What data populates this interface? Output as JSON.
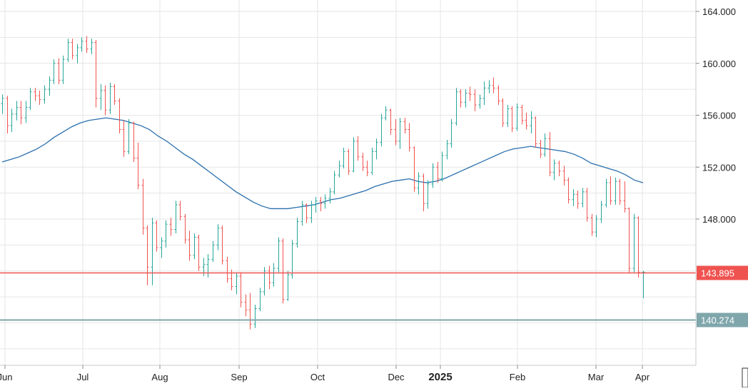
{
  "chart_data": {
    "type": "ohlc",
    "x_tick_labels": [
      "Jun",
      "Jul",
      "Aug",
      "Sep",
      "Oct",
      "Dec",
      "2025",
      "Feb",
      "Mar",
      "Apr"
    ],
    "y_tick_labels": [
      "164.000",
      "160.000",
      "156.000",
      "152.000",
      "148.000"
    ],
    "ylim": [
      137.5,
      165.2
    ],
    "grid": true,
    "price_lines": [
      {
        "value": 143.895,
        "label": "143.895",
        "color": "#ef5350"
      },
      {
        "value": 140.274,
        "label": "140.274",
        "color": "#7fa6ab"
      }
    ],
    "colors": {
      "up": "#26a69a",
      "down": "#ef5350",
      "moving_average": "#2a6fae",
      "grid": "#e6e6e6",
      "axis_text": "#222222"
    },
    "moving_average": [
      [
        0,
        152.4
      ],
      [
        10,
        152.6
      ],
      [
        20,
        152.8
      ],
      [
        30,
        153.1
      ],
      [
        40,
        153.4
      ],
      [
        50,
        153.8
      ],
      [
        60,
        154.3
      ],
      [
        70,
        154.7
      ],
      [
        80,
        155.1
      ],
      [
        90,
        155.4
      ],
      [
        100,
        155.6
      ],
      [
        110,
        155.7
      ],
      [
        120,
        155.8
      ],
      [
        130,
        155.7
      ],
      [
        140,
        155.6
      ],
      [
        150,
        155.4
      ],
      [
        160,
        155.2
      ],
      [
        170,
        154.9
      ],
      [
        180,
        154.4
      ],
      [
        190,
        154.0
      ],
      [
        200,
        153.5
      ],
      [
        210,
        153.0
      ],
      [
        220,
        152.6
      ],
      [
        230,
        152.1
      ],
      [
        240,
        151.6
      ],
      [
        250,
        151.1
      ],
      [
        260,
        150.6
      ],
      [
        270,
        150.1
      ],
      [
        280,
        149.7
      ],
      [
        290,
        149.3
      ],
      [
        300,
        149.0
      ],
      [
        310,
        148.8
      ],
      [
        320,
        148.8
      ],
      [
        330,
        148.8
      ],
      [
        340,
        148.9
      ],
      [
        350,
        149.0
      ],
      [
        360,
        149.1
      ],
      [
        370,
        149.3
      ],
      [
        380,
        149.5
      ],
      [
        390,
        149.6
      ],
      [
        400,
        149.8
      ],
      [
        410,
        150.0
      ],
      [
        420,
        150.2
      ],
      [
        430,
        150.5
      ],
      [
        440,
        150.7
      ],
      [
        450,
        150.9
      ],
      [
        460,
        151.0
      ],
      [
        470,
        151.1
      ],
      [
        480,
        150.9
      ],
      [
        490,
        150.8
      ],
      [
        500,
        150.9
      ],
      [
        510,
        151.1
      ],
      [
        520,
        151.4
      ],
      [
        530,
        151.7
      ],
      [
        540,
        152.0
      ],
      [
        550,
        152.3
      ],
      [
        560,
        152.6
      ],
      [
        570,
        152.9
      ],
      [
        580,
        153.2
      ],
      [
        590,
        153.4
      ],
      [
        600,
        153.5
      ],
      [
        610,
        153.6
      ],
      [
        620,
        153.5
      ],
      [
        630,
        153.4
      ],
      [
        640,
        153.3
      ],
      [
        650,
        153.2
      ],
      [
        660,
        153.0
      ],
      [
        670,
        152.7
      ],
      [
        680,
        152.3
      ],
      [
        690,
        152.1
      ],
      [
        700,
        151.9
      ],
      [
        710,
        151.7
      ],
      [
        720,
        151.4
      ],
      [
        730,
        151.0
      ],
      [
        740,
        150.8
      ]
    ],
    "bars": [
      [
        0,
        156.9,
        157.6,
        156.1,
        157.3
      ],
      [
        4,
        157.3,
        157.5,
        154.6,
        155.2
      ],
      [
        8,
        155.2,
        156.5,
        154.7,
        156.1
      ],
      [
        12,
        156.1,
        157.1,
        155.6,
        156.6
      ],
      [
        16,
        156.6,
        157.1,
        155.3,
        155.8
      ],
      [
        20,
        155.8,
        157.1,
        155.4,
        156.6
      ],
      [
        24,
        156.6,
        158.1,
        156.4,
        157.8
      ],
      [
        28,
        157.8,
        158.1,
        157.1,
        157.5
      ],
      [
        32,
        157.5,
        157.9,
        156.8,
        157.2
      ],
      [
        36,
        157.2,
        158.3,
        156.9,
        158.0
      ],
      [
        40,
        158.0,
        159.0,
        157.5,
        158.7
      ],
      [
        44,
        158.7,
        160.3,
        158.4,
        160.0
      ],
      [
        48,
        160.0,
        160.4,
        158.4,
        158.7
      ],
      [
        52,
        158.7,
        160.6,
        158.4,
        160.3
      ],
      [
        56,
        160.3,
        161.9,
        160.1,
        161.6
      ],
      [
        60,
        161.6,
        161.9,
        160.3,
        160.6
      ],
      [
        64,
        160.6,
        161.5,
        160.0,
        161.2
      ],
      [
        68,
        161.2,
        162.0,
        160.9,
        161.7
      ],
      [
        72,
        161.7,
        162.1,
        160.8,
        161.1
      ],
      [
        76,
        161.1,
        161.9,
        160.7,
        161.6
      ],
      [
        80,
        161.6,
        161.8,
        156.6,
        157.3
      ],
      [
        84,
        157.3,
        158.4,
        156.4,
        157.9
      ],
      [
        88,
        157.9,
        158.3,
        156.0,
        156.4
      ],
      [
        92,
        156.4,
        158.5,
        156.1,
        158.2
      ],
      [
        96,
        158.2,
        158.4,
        156.8,
        157.1
      ],
      [
        100,
        157.1,
        157.3,
        154.6,
        154.9
      ],
      [
        104,
        154.9,
        155.6,
        152.8,
        153.2
      ],
      [
        108,
        153.2,
        155.7,
        153.0,
        155.4
      ],
      [
        112,
        155.4,
        155.5,
        152.4,
        152.7
      ],
      [
        116,
        152.7,
        153.9,
        150.3,
        150.6
      ],
      [
        120,
        150.6,
        151.1,
        146.8,
        147.3
      ],
      [
        124,
        147.3,
        147.5,
        142.9,
        144.3
      ],
      [
        128,
        144.3,
        148.1,
        142.9,
        147.7
      ],
      [
        132,
        147.7,
        147.9,
        145.5,
        145.8
      ],
      [
        136,
        145.8,
        146.6,
        145.0,
        146.3
      ],
      [
        140,
        146.3,
        147.9,
        145.8,
        147.6
      ],
      [
        144,
        147.6,
        148.1,
        146.7,
        147.2
      ],
      [
        148,
        147.2,
        149.4,
        146.9,
        149.1
      ],
      [
        152,
        149.1,
        149.4,
        147.9,
        148.2
      ],
      [
        156,
        148.2,
        148.4,
        146.1,
        146.4
      ],
      [
        160,
        146.4,
        147.1,
        144.8,
        145.2
      ],
      [
        164,
        145.2,
        146.9,
        144.9,
        146.6
      ],
      [
        168,
        146.6,
        146.8,
        144.0,
        144.3
      ],
      [
        172,
        144.3,
        145.0,
        143.6,
        144.5
      ],
      [
        176,
        144.5,
        145.3,
        143.5,
        144.9
      ],
      [
        180,
        144.9,
        146.3,
        144.7,
        146.0
      ],
      [
        184,
        146.0,
        147.6,
        145.6,
        147.3
      ],
      [
        188,
        147.3,
        147.5,
        144.5,
        144.8
      ],
      [
        192,
        144.8,
        145.1,
        143.1,
        143.4
      ],
      [
        196,
        143.4,
        144.1,
        142.5,
        142.8
      ],
      [
        200,
        142.8,
        143.9,
        142.2,
        143.6
      ],
      [
        204,
        143.6,
        143.9,
        141.2,
        141.6
      ],
      [
        208,
        141.6,
        142.2,
        140.5,
        141.0
      ],
      [
        212,
        141.0,
        142.3,
        139.5,
        139.9
      ],
      [
        216,
        139.9,
        141.4,
        139.6,
        141.1
      ],
      [
        220,
        141.1,
        142.7,
        140.9,
        142.4
      ],
      [
        224,
        142.4,
        144.3,
        142.1,
        144.0
      ],
      [
        228,
        144.0,
        144.4,
        142.6,
        143.1
      ],
      [
        232,
        143.1,
        144.6,
        142.8,
        144.2
      ],
      [
        236,
        144.2,
        146.6,
        143.9,
        146.3
      ],
      [
        240,
        146.3,
        146.5,
        141.5,
        141.8
      ],
      [
        244,
        141.8,
        144.0,
        141.7,
        143.7
      ],
      [
        248,
        143.7,
        146.4,
        143.4,
        146.1
      ],
      [
        252,
        146.1,
        148.1,
        145.8,
        147.8
      ],
      [
        256,
        147.8,
        149.4,
        147.5,
        149.1
      ],
      [
        260,
        149.1,
        149.2,
        147.7,
        148.1
      ],
      [
        264,
        148.1,
        149.4,
        147.7,
        149.1
      ],
      [
        268,
        149.1,
        149.7,
        148.5,
        149.4
      ],
      [
        272,
        149.4,
        149.7,
        148.6,
        149.2
      ],
      [
        276,
        149.2,
        149.9,
        148.8,
        149.6
      ],
      [
        280,
        149.6,
        150.4,
        149.2,
        150.1
      ],
      [
        284,
        150.1,
        151.7,
        149.9,
        151.4
      ],
      [
        288,
        151.4,
        152.5,
        151.2,
        152.1
      ],
      [
        292,
        152.1,
        153.5,
        151.9,
        153.2
      ],
      [
        296,
        153.2,
        153.4,
        151.4,
        151.7
      ],
      [
        300,
        151.7,
        154.3,
        151.6,
        154.0
      ],
      [
        304,
        154.0,
        154.4,
        152.5,
        152.8
      ],
      [
        308,
        152.8,
        153.1,
        151.7,
        152.0
      ],
      [
        312,
        152.0,
        152.5,
        151.3,
        151.6
      ],
      [
        316,
        151.6,
        153.5,
        151.4,
        153.2
      ],
      [
        320,
        153.2,
        154.2,
        152.6,
        153.9
      ],
      [
        324,
        153.9,
        156.1,
        153.6,
        155.8
      ],
      [
        328,
        155.8,
        156.7,
        155.6,
        156.4
      ],
      [
        332,
        156.4,
        156.5,
        154.5,
        154.9
      ],
      [
        336,
        154.9,
        155.7,
        153.7,
        154.0
      ],
      [
        340,
        154.0,
        155.8,
        153.4,
        155.5
      ],
      [
        344,
        155.5,
        155.8,
        154.6,
        154.9
      ],
      [
        348,
        154.9,
        155.4,
        153.2,
        153.5
      ],
      [
        352,
        153.5,
        153.6,
        150.1,
        150.4
      ],
      [
        356,
        150.4,
        151.6,
        149.9,
        151.3
      ],
      [
        360,
        151.3,
        151.5,
        148.6,
        149.2
      ],
      [
        364,
        149.2,
        151.0,
        148.8,
        150.7
      ],
      [
        368,
        150.7,
        152.3,
        150.4,
        152.0
      ],
      [
        372,
        152.0,
        152.4,
        150.8,
        151.1
      ],
      [
        376,
        151.1,
        153.2,
        150.9,
        152.9
      ],
      [
        380,
        152.9,
        154.1,
        152.6,
        153.8
      ],
      [
        384,
        153.8,
        155.7,
        153.5,
        155.4
      ],
      [
        388,
        155.4,
        158.1,
        155.2,
        157.8
      ],
      [
        392,
        157.8,
        158.0,
        156.6,
        157.0
      ],
      [
        396,
        157.0,
        158.0,
        156.6,
        157.7
      ],
      [
        400,
        157.7,
        158.2,
        157.1,
        157.6
      ],
      [
        404,
        157.6,
        158.0,
        156.3,
        156.8
      ],
      [
        408,
        156.8,
        157.6,
        156.5,
        157.3
      ],
      [
        412,
        157.3,
        158.6,
        156.8,
        158.1
      ],
      [
        416,
        158.1,
        158.7,
        157.7,
        158.3
      ],
      [
        420,
        158.3,
        158.9,
        157.7,
        158.1
      ],
      [
        424,
        158.1,
        158.3,
        156.8,
        157.1
      ],
      [
        428,
        157.1,
        157.3,
        155.1,
        155.4
      ],
      [
        432,
        155.4,
        156.8,
        155.1,
        156.5
      ],
      [
        436,
        156.5,
        156.7,
        154.7,
        155.0
      ],
      [
        440,
        155.0,
        156.9,
        154.8,
        156.6
      ],
      [
        444,
        156.6,
        156.8,
        155.3,
        155.6
      ],
      [
        448,
        155.6,
        156.2,
        154.9,
        155.2
      ],
      [
        452,
        155.2,
        156.3,
        154.6,
        155.8
      ],
      [
        456,
        155.8,
        155.9,
        153.5,
        153.8
      ],
      [
        460,
        153.8,
        154.1,
        152.7,
        153.0
      ],
      [
        464,
        153.0,
        154.6,
        152.8,
        154.2
      ],
      [
        468,
        154.2,
        154.7,
        151.3,
        151.6
      ],
      [
        472,
        151.6,
        152.6,
        151.0,
        152.3
      ],
      [
        476,
        152.3,
        152.5,
        151.3,
        151.7
      ],
      [
        480,
        151.7,
        152.1,
        150.6,
        151.0
      ],
      [
        484,
        151.0,
        151.2,
        149.2,
        149.5
      ],
      [
        488,
        149.5,
        150.3,
        149.0,
        149.9
      ],
      [
        492,
        149.9,
        150.2,
        148.8,
        149.2
      ],
      [
        496,
        149.2,
        150.4,
        148.9,
        150.1
      ],
      [
        500,
        150.1,
        150.4,
        147.8,
        148.1
      ],
      [
        504,
        148.1,
        148.4,
        146.7,
        147.0
      ],
      [
        508,
        147.0,
        148.3,
        146.6,
        148.0
      ],
      [
        512,
        148.0,
        149.4,
        147.7,
        149.1
      ],
      [
        516,
        149.1,
        151.1,
        148.9,
        150.8
      ],
      [
        520,
        150.8,
        151.3,
        149.1,
        149.4
      ],
      [
        524,
        149.4,
        151.2,
        149.1,
        150.9
      ],
      [
        528,
        150.9,
        151.1,
        149.1,
        149.4
      ],
      [
        532,
        149.4,
        150.9,
        148.5,
        148.8
      ],
      [
        536,
        148.8,
        148.9,
        143.8,
        144.2
      ],
      [
        540,
        144.2,
        148.4,
        143.9,
        148.1
      ],
      [
        544,
        148.1,
        148.2,
        143.5,
        143.9
      ],
      [
        548,
        143.9,
        144.0,
        141.9,
        143.9
      ]
    ],
    "bar_count": 138
  }
}
